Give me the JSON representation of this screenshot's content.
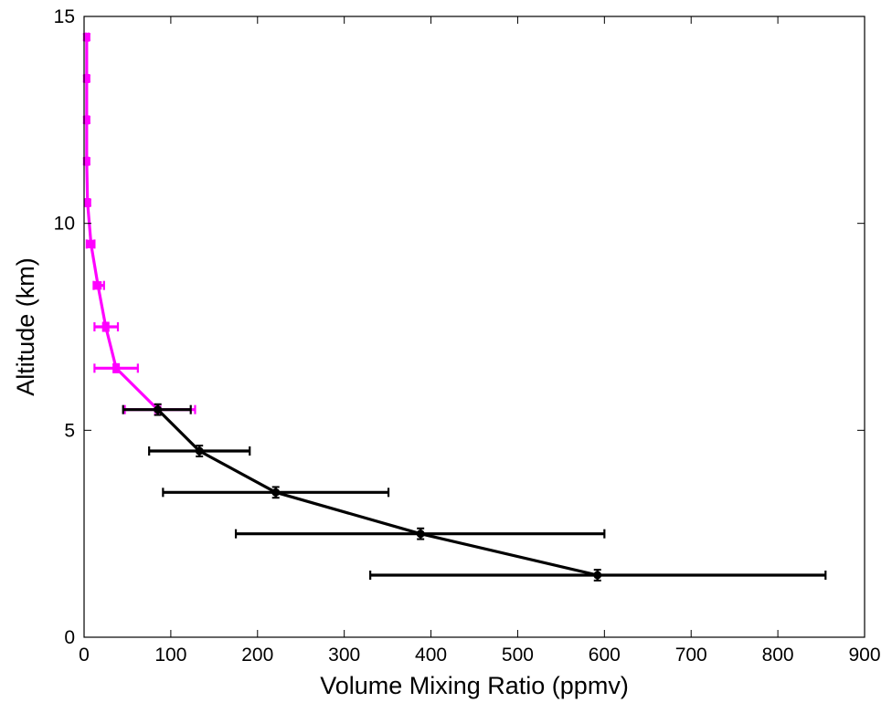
{
  "chart_data": {
    "type": "line",
    "title": "",
    "xlabel": "Volume Mixing Ratio (ppmv)",
    "ylabel": "Altitude (km)",
    "xlim": [
      0,
      900
    ],
    "ylim": [
      0,
      15
    ],
    "xticks": [
      0,
      100,
      200,
      300,
      400,
      500,
      600,
      700,
      800,
      900
    ],
    "yticks": [
      0,
      5,
      10,
      15
    ],
    "grid": false,
    "legend": "none",
    "series": [
      {
        "color": "#ff00ff",
        "marker": "square",
        "points": [
          {
            "x": 3,
            "y": 14.5,
            "xerr_low": 2,
            "xerr_high": 5,
            "yerr": 0.08
          },
          {
            "x": 3,
            "y": 13.5,
            "xerr_low": 2,
            "xerr_high": 5,
            "yerr": 0.08
          },
          {
            "x": 3,
            "y": 12.5,
            "xerr_low": 2,
            "xerr_high": 5,
            "yerr": 0.08
          },
          {
            "x": 3,
            "y": 11.5,
            "xerr_low": 2,
            "xerr_high": 5,
            "yerr": 0.08
          },
          {
            "x": 4,
            "y": 10.5,
            "xerr_low": 2,
            "xerr_high": 6,
            "yerr": 0.08
          },
          {
            "x": 8,
            "y": 9.5,
            "xerr_low": 3,
            "xerr_high": 12,
            "yerr": 0.08
          },
          {
            "x": 16,
            "y": 8.5,
            "xerr_low": 11,
            "xerr_high": 23,
            "yerr": 0.08
          },
          {
            "x": 25,
            "y": 7.5,
            "xerr_low": 12,
            "xerr_high": 39,
            "yerr": 0.1
          },
          {
            "x": 37,
            "y": 6.5,
            "xerr_low": 12,
            "xerr_high": 62,
            "yerr": 0.1
          },
          {
            "x": 85,
            "y": 5.5,
            "xerr_low": 47,
            "xerr_high": 128,
            "yerr": 0.12
          }
        ]
      },
      {
        "color": "#000000",
        "marker": "circle",
        "points": [
          {
            "x": 85,
            "y": 5.5,
            "xerr_low": 45,
            "xerr_high": 123,
            "yerr": 0.13
          },
          {
            "x": 133,
            "y": 4.5,
            "xerr_low": 75,
            "xerr_high": 191,
            "yerr": 0.13
          },
          {
            "x": 221,
            "y": 3.5,
            "xerr_low": 91,
            "xerr_high": 351,
            "yerr": 0.13
          },
          {
            "x": 388,
            "y": 2.5,
            "xerr_low": 175,
            "xerr_high": 600,
            "yerr": 0.13
          },
          {
            "x": 592,
            "y": 1.5,
            "xerr_low": 330,
            "xerr_high": 855,
            "yerr": 0.13
          }
        ]
      }
    ]
  }
}
